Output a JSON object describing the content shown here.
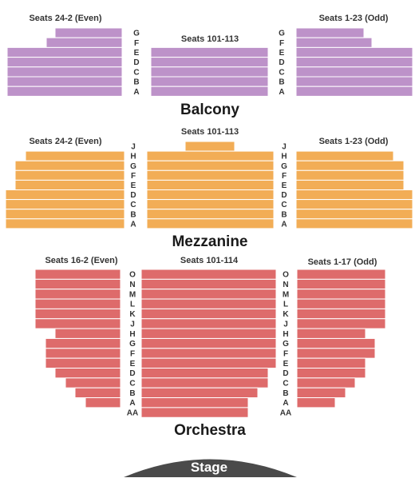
{
  "colors": {
    "balcony": "#bd92c9",
    "mezzanine": "#f2ad56",
    "orchestra": "#de6b6b",
    "stage": "#4a4a4a"
  },
  "stage": {
    "label": "Stage"
  },
  "levels": [
    {
      "id": "balcony",
      "title": "Balcony",
      "rows": [
        "G",
        "F",
        "E",
        "D",
        "C",
        "B",
        "A"
      ],
      "sections": [
        {
          "id": "balcony-left",
          "label": "Seats 24-2 (Even)",
          "rows": [
            "G",
            "F",
            "E",
            "D",
            "C",
            "B",
            "A"
          ]
        },
        {
          "id": "balcony-center",
          "label": "Seats 101-113",
          "rows": [
            "E",
            "D",
            "C",
            "B",
            "A"
          ]
        },
        {
          "id": "balcony-right",
          "label": "Seats 1-23 (Odd)",
          "rows": [
            "G",
            "F",
            "E",
            "D",
            "C",
            "B",
            "A"
          ]
        }
      ]
    },
    {
      "id": "mezzanine",
      "title": "Mezzanine",
      "rows": [
        "J",
        "H",
        "G",
        "F",
        "E",
        "D",
        "C",
        "B",
        "A"
      ],
      "sections": [
        {
          "id": "mezzanine-left",
          "label": "Seats 24-2 (Even)",
          "rows": [
            "H",
            "G",
            "F",
            "E",
            "D",
            "C",
            "B",
            "A"
          ]
        },
        {
          "id": "mezzanine-center",
          "label": "Seats 101-113",
          "rows": [
            "J",
            "H",
            "G",
            "F",
            "E",
            "D",
            "C",
            "B",
            "A"
          ]
        },
        {
          "id": "mezzanine-right",
          "label": "Seats 1-23 (Odd)",
          "rows": [
            "H",
            "G",
            "F",
            "E",
            "D",
            "C",
            "B",
            "A"
          ]
        }
      ]
    },
    {
      "id": "orchestra",
      "title": "Orchestra",
      "rows": [
        "O",
        "N",
        "M",
        "L",
        "K",
        "J",
        "H",
        "G",
        "F",
        "E",
        "D",
        "C",
        "B",
        "A",
        "AA"
      ],
      "sections": [
        {
          "id": "orchestra-left",
          "label": "Seats 16-2 (Even)",
          "rows": [
            "O",
            "N",
            "M",
            "L",
            "K",
            "J",
            "H",
            "G",
            "F",
            "E",
            "D",
            "C",
            "B",
            "A"
          ]
        },
        {
          "id": "orchestra-center",
          "label": "Seats 101-114",
          "rows": [
            "O",
            "N",
            "M",
            "L",
            "K",
            "J",
            "H",
            "G",
            "F",
            "E",
            "D",
            "C",
            "B",
            "A",
            "AA"
          ]
        },
        {
          "id": "orchestra-right",
          "label": "Seats 1-17 (Odd)",
          "rows": [
            "O",
            "N",
            "M",
            "L",
            "K",
            "J",
            "H",
            "G",
            "F",
            "E",
            "D",
            "C",
            "B",
            "A"
          ]
        }
      ]
    }
  ]
}
